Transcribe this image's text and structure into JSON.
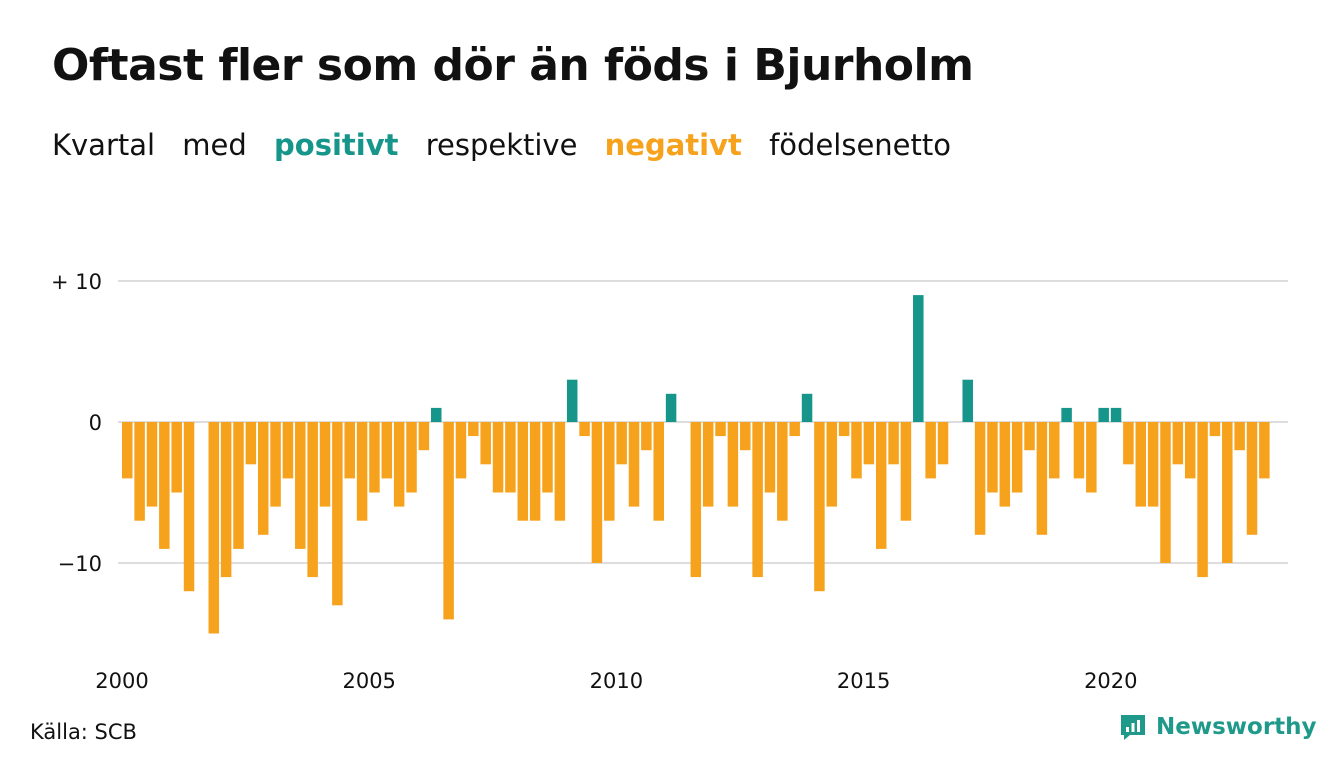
{
  "title": "Oftast fler som dör än föds i Bjurholm",
  "subtitle": {
    "part1": "Kvartal",
    "part2": "med",
    "positive": "positivt",
    "part3": "respektive",
    "negative": "negativt",
    "part4": "födelsenetto"
  },
  "source": "Källa: SCB",
  "brand": {
    "name": "Newsworthy",
    "color": "#1f9a8a",
    "icon": "chart-bubble-icon"
  },
  "colors": {
    "positive": "#16958a",
    "negative": "#f6a21d",
    "grid": "#dddddd",
    "text": "#111111"
  },
  "chart_data": {
    "type": "bar",
    "title": "Oftast fler som dör än föds i Bjurholm",
    "xlabel": "",
    "ylabel": "",
    "ylim": [
      -15,
      10
    ],
    "y_ticks": [
      10,
      0,
      -10
    ],
    "y_tick_labels": [
      "+ 10",
      "0",
      "−10"
    ],
    "x_ticks": [
      2000,
      2005,
      2010,
      2015,
      2020
    ],
    "x_tick_labels": [
      "2000",
      "2005",
      "2010",
      "2015",
      "2020"
    ],
    "start_year": 2000,
    "periods_per_year": 4,
    "grid": true,
    "values": [
      -4,
      -7,
      -6,
      -9,
      -5,
      -12,
      0,
      -15,
      -11,
      -9,
      -3,
      -8,
      -6,
      -4,
      -9,
      -11,
      -6,
      -13,
      -4,
      -7,
      -5,
      -4,
      -6,
      -5,
      -2,
      1,
      -14,
      -4,
      -1,
      -3,
      -5,
      -5,
      -7,
      -7,
      -5,
      -7,
      3,
      -1,
      -10,
      -7,
      -3,
      -6,
      -2,
      -7,
      2,
      0,
      -11,
      -6,
      -1,
      -6,
      -2,
      -11,
      -5,
      -7,
      -1,
      2,
      -12,
      -6,
      -1,
      -4,
      -3,
      -9,
      -3,
      -7,
      9,
      -4,
      -3,
      0,
      3,
      -8,
      -5,
      -6,
      -5,
      -2,
      -8,
      -4,
      1,
      -4,
      -5,
      1,
      1,
      -3,
      -6,
      -6,
      -10,
      -3,
      -4,
      -11,
      -1,
      -10,
      -2,
      -8,
      -4
    ]
  }
}
